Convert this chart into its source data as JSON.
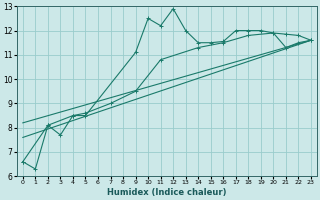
{
  "xlabel": "Humidex (Indice chaleur)",
  "xlim": [
    -0.5,
    23.5
  ],
  "ylim": [
    6,
    13
  ],
  "yticks": [
    6,
    7,
    8,
    9,
    10,
    11,
    12,
    13
  ],
  "xticks": [
    0,
    1,
    2,
    3,
    4,
    5,
    6,
    7,
    8,
    9,
    10,
    11,
    12,
    13,
    14,
    15,
    16,
    17,
    18,
    19,
    20,
    21,
    22,
    23
  ],
  "bg_color": "#cce8e8",
  "grid_color": "#99cccc",
  "line_color": "#1a7a6a",
  "series1_x": [
    0,
    1,
    2,
    3,
    4,
    5,
    9,
    10,
    11,
    12,
    13,
    14,
    15,
    16,
    17,
    18,
    19,
    20,
    21,
    22,
    23
  ],
  "series1_y": [
    6.6,
    6.3,
    8.1,
    7.7,
    8.5,
    8.5,
    11.1,
    12.5,
    12.2,
    12.9,
    12.0,
    11.5,
    11.5,
    11.55,
    12.0,
    12.0,
    12.0,
    11.9,
    11.3,
    11.5,
    11.6
  ],
  "series2_x": [
    0,
    2,
    4,
    5,
    7,
    9,
    11,
    14,
    16,
    18,
    20,
    21,
    22,
    23
  ],
  "series2_y": [
    6.6,
    8.1,
    8.5,
    8.6,
    9.0,
    9.5,
    10.8,
    11.3,
    11.5,
    11.8,
    11.9,
    11.85,
    11.8,
    11.6
  ],
  "series3_x": [
    0,
    23
  ],
  "series3_y": [
    7.6,
    11.6
  ],
  "series4_x": [
    0,
    23
  ],
  "series4_y": [
    8.2,
    11.6
  ]
}
